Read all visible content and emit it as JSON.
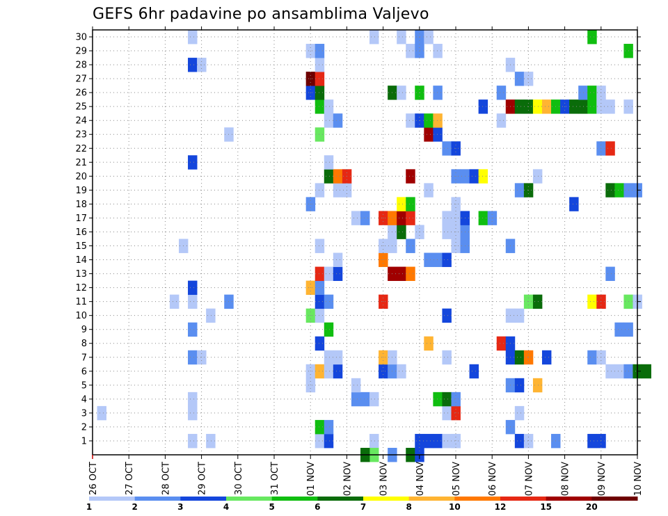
{
  "chart_data": {
    "type": "heatmap",
    "title": "GEFS 6hr padavine po ansamblima Valjevo",
    "x_tick_labels": [
      "26 OCT",
      "27 OCT",
      "28 OCT",
      "29 OCT",
      "30 OCT",
      "31 OCT",
      "01 NOV",
      "02 NOV",
      "03 NOV",
      "04 NOV",
      "05 NOV",
      "06 NOV",
      "07 NOV",
      "08 NOV",
      "09 NOV",
      "10 NOV"
    ],
    "y_tick_labels": [
      "1",
      "2",
      "3",
      "4",
      "5",
      "6",
      "7",
      "8",
      "9",
      "10",
      "11",
      "12",
      "13",
      "14",
      "15",
      "16",
      "17",
      "18",
      "19",
      "20",
      "21",
      "22",
      "23",
      "24",
      "25",
      "26",
      "27",
      "28",
      "29",
      "30"
    ],
    "x_range_days": [
      0,
      15
    ],
    "y_range": [
      0,
      30
    ],
    "x_unit": "days since 26 OCT 00Z",
    "step_hours": 6,
    "colorbar": {
      "labels": [
        "1",
        "2",
        "3",
        "4",
        "5",
        "6",
        "7",
        "8",
        "10",
        "12",
        "15",
        "20"
      ],
      "colors": [
        "#b4c8f8",
        "#5a8ef0",
        "#1446dc",
        "#68e860",
        "#10be10",
        "#0a6c0a",
        "#ffff00",
        "#ffb432",
        "#ff7800",
        "#e62814",
        "#a00000",
        "#6e0000"
      ]
    },
    "grid": true,
    "cells": [
      [
        6.25,
        1,
        0
      ],
      [
        6.5,
        1,
        2
      ],
      [
        7.75,
        1,
        0
      ],
      [
        7.75,
        0,
        3
      ],
      [
        8.75,
        0,
        5
      ],
      [
        9,
        0,
        2
      ],
      [
        9,
        1,
        2
      ],
      [
        9.25,
        1,
        2
      ],
      [
        9.5,
        1,
        2
      ],
      [
        9.75,
        1,
        0
      ],
      [
        10,
        1,
        0
      ],
      [
        10,
        1,
        0
      ],
      [
        11.75,
        1,
        2
      ],
      [
        12,
        1,
        0
      ],
      [
        12.75,
        1,
        1
      ],
      [
        13.75,
        1,
        2
      ],
      [
        14,
        1,
        2
      ],
      [
        2.75,
        1,
        0
      ],
      [
        3.25,
        1,
        0
      ],
      [
        7.5,
        0,
        5
      ],
      [
        8.25,
        0,
        1
      ],
      [
        6.25,
        2,
        4
      ],
      [
        6.5,
        2,
        1
      ],
      [
        11.5,
        2,
        1
      ],
      [
        0.25,
        3,
        0
      ],
      [
        2.75,
        3,
        0
      ],
      [
        9.75,
        3,
        0
      ],
      [
        10,
        3,
        9
      ],
      [
        11.75,
        3,
        0
      ],
      [
        2.75,
        4,
        0
      ],
      [
        7.25,
        4,
        1
      ],
      [
        7.5,
        4,
        1
      ],
      [
        7.75,
        4,
        0
      ],
      [
        9.5,
        4,
        4
      ],
      [
        9.75,
        4,
        5
      ],
      [
        10,
        4,
        1
      ],
      [
        6,
        5,
        0
      ],
      [
        7.25,
        5,
        0
      ],
      [
        11.5,
        5,
        1
      ],
      [
        11.75,
        5,
        2
      ],
      [
        12.25,
        5,
        7
      ],
      [
        6,
        6,
        0
      ],
      [
        6.25,
        6,
        7
      ],
      [
        6.5,
        6,
        0
      ],
      [
        6.75,
        6,
        2
      ],
      [
        8,
        6,
        2
      ],
      [
        8.25,
        6,
        1
      ],
      [
        8.5,
        6,
        0
      ],
      [
        10.5,
        6,
        2
      ],
      [
        14.25,
        6,
        0
      ],
      [
        14.5,
        6,
        0
      ],
      [
        14.75,
        6,
        1
      ],
      [
        15,
        6,
        5
      ],
      [
        15.25,
        6,
        5
      ],
      [
        2.75,
        7,
        1
      ],
      [
        3,
        7,
        0
      ],
      [
        6.5,
        7,
        0
      ],
      [
        6.75,
        7,
        0
      ],
      [
        8,
        7,
        7
      ],
      [
        8.25,
        7,
        0
      ],
      [
        9.75,
        7,
        0
      ],
      [
        11.5,
        7,
        2
      ],
      [
        11.75,
        7,
        5
      ],
      [
        12,
        7,
        8
      ],
      [
        12.5,
        7,
        2
      ],
      [
        13.75,
        7,
        1
      ],
      [
        14,
        7,
        0
      ],
      [
        6.25,
        8,
        2
      ],
      [
        9.25,
        8,
        7
      ],
      [
        11.25,
        8,
        9
      ],
      [
        11.5,
        8,
        2
      ],
      [
        2.75,
        9,
        1
      ],
      [
        6.5,
        9,
        4
      ],
      [
        14.5,
        9,
        1
      ],
      [
        14.75,
        9,
        1
      ],
      [
        3.25,
        10,
        0
      ],
      [
        6,
        10,
        3
      ],
      [
        6.25,
        10,
        0
      ],
      [
        9.75,
        10,
        2
      ],
      [
        11.5,
        10,
        0
      ],
      [
        11.75,
        10,
        0
      ],
      [
        2.25,
        11,
        0
      ],
      [
        2.75,
        11,
        0
      ],
      [
        3.75,
        11,
        1
      ],
      [
        6.25,
        11,
        2
      ],
      [
        6.5,
        11,
        1
      ],
      [
        8,
        11,
        9
      ],
      [
        12,
        11,
        3
      ],
      [
        12.25,
        11,
        5
      ],
      [
        13.75,
        11,
        6
      ],
      [
        14,
        11,
        9
      ],
      [
        14.75,
        11,
        3
      ],
      [
        15,
        11,
        0
      ],
      [
        2.75,
        12,
        2
      ],
      [
        6,
        12,
        7
      ],
      [
        6.25,
        12,
        1
      ],
      [
        6.25,
        13,
        9
      ],
      [
        6.5,
        13,
        0
      ],
      [
        6.75,
        13,
        2
      ],
      [
        8.25,
        13,
        10
      ],
      [
        8.5,
        13,
        10
      ],
      [
        8.75,
        13,
        8
      ],
      [
        14.25,
        13,
        1
      ],
      [
        6.75,
        14,
        0
      ],
      [
        8,
        14,
        8
      ],
      [
        9.25,
        14,
        1
      ],
      [
        9.5,
        14,
        1
      ],
      [
        9.75,
        14,
        2
      ],
      [
        2.5,
        15,
        0
      ],
      [
        6.25,
        15,
        0
      ],
      [
        8,
        15,
        0
      ],
      [
        8.25,
        15,
        0
      ],
      [
        8.75,
        15,
        1
      ],
      [
        10,
        15,
        0
      ],
      [
        10.25,
        15,
        1
      ],
      [
        11.5,
        15,
        1
      ],
      [
        8.25,
        16,
        0
      ],
      [
        8.5,
        16,
        5
      ],
      [
        9,
        16,
        0
      ],
      [
        9.75,
        16,
        0
      ],
      [
        10,
        16,
        0
      ],
      [
        10.25,
        16,
        1
      ],
      [
        7.25,
        17,
        0
      ],
      [
        7.5,
        17,
        1
      ],
      [
        8,
        17,
        9
      ],
      [
        8.25,
        17,
        8
      ],
      [
        8.5,
        17,
        10
      ],
      [
        8.75,
        17,
        9
      ],
      [
        9.75,
        17,
        0
      ],
      [
        10,
        17,
        0
      ],
      [
        10.25,
        17,
        2
      ],
      [
        10.75,
        17,
        4
      ],
      [
        11,
        17,
        1
      ],
      [
        6,
        18,
        1
      ],
      [
        8.5,
        18,
        6
      ],
      [
        8.75,
        18,
        4
      ],
      [
        10,
        18,
        0
      ],
      [
        13.25,
        18,
        2
      ],
      [
        6.25,
        19,
        0
      ],
      [
        6.75,
        19,
        0
      ],
      [
        7,
        19,
        0
      ],
      [
        9.25,
        19,
        0
      ],
      [
        11.75,
        19,
        1
      ],
      [
        12,
        19,
        5
      ],
      [
        14.25,
        19,
        5
      ],
      [
        14.5,
        19,
        4
      ],
      [
        14.75,
        19,
        1
      ],
      [
        15,
        19,
        1
      ],
      [
        6.5,
        20,
        5
      ],
      [
        6.75,
        20,
        8
      ],
      [
        7,
        20,
        9
      ],
      [
        8.75,
        20,
        10
      ],
      [
        10,
        20,
        1
      ],
      [
        10.25,
        20,
        1
      ],
      [
        10.5,
        20,
        2
      ],
      [
        10.75,
        20,
        6
      ],
      [
        12.25,
        20,
        0
      ],
      [
        2.75,
        21,
        2
      ],
      [
        6.5,
        21,
        0
      ],
      [
        9.75,
        22,
        1
      ],
      [
        10,
        22,
        2
      ],
      [
        14,
        22,
        1
      ],
      [
        14.25,
        22,
        9
      ],
      [
        3.75,
        23,
        0
      ],
      [
        6.25,
        23,
        3
      ],
      [
        9.25,
        23,
        10
      ],
      [
        9.5,
        23,
        2
      ],
      [
        6.5,
        24,
        0
      ],
      [
        6.75,
        24,
        1
      ],
      [
        8.75,
        24,
        0
      ],
      [
        9,
        24,
        2
      ],
      [
        9.25,
        24,
        4
      ],
      [
        9.5,
        24,
        7
      ],
      [
        11.25,
        24,
        0
      ],
      [
        6.25,
        25,
        4
      ],
      [
        6.5,
        25,
        0
      ],
      [
        10.75,
        25,
        2
      ],
      [
        11.5,
        25,
        10
      ],
      [
        11.75,
        25,
        5
      ],
      [
        12,
        25,
        5
      ],
      [
        12.25,
        25,
        6
      ],
      [
        12.5,
        25,
        7
      ],
      [
        12.75,
        25,
        4
      ],
      [
        13,
        25,
        2
      ],
      [
        13.25,
        25,
        5
      ],
      [
        13.5,
        25,
        5
      ],
      [
        13.75,
        25,
        4
      ],
      [
        14,
        25,
        0
      ],
      [
        14.25,
        25,
        0
      ],
      [
        14.75,
        25,
        0
      ],
      [
        6,
        26,
        2
      ],
      [
        6.25,
        26,
        5
      ],
      [
        8.25,
        26,
        5
      ],
      [
        8.5,
        26,
        0
      ],
      [
        9,
        26,
        4
      ],
      [
        9.5,
        26,
        1
      ],
      [
        11.25,
        26,
        1
      ],
      [
        13.5,
        26,
        1
      ],
      [
        13.75,
        26,
        4
      ],
      [
        14,
        26,
        0
      ],
      [
        6,
        27,
        11
      ],
      [
        6.25,
        27,
        9
      ],
      [
        11.75,
        27,
        1
      ],
      [
        12,
        27,
        0
      ],
      [
        2.75,
        28,
        2
      ],
      [
        3,
        28,
        0
      ],
      [
        6.25,
        28,
        0
      ],
      [
        11.5,
        28,
        0
      ],
      [
        6,
        29,
        0
      ],
      [
        6.25,
        29,
        1
      ],
      [
        8.75,
        29,
        0
      ],
      [
        9,
        29,
        1
      ],
      [
        9.5,
        29,
        0
      ],
      [
        14.75,
        29,
        4
      ],
      [
        2.75,
        30,
        0
      ],
      [
        7.75,
        30,
        0
      ],
      [
        8.5,
        30,
        0
      ],
      [
        9,
        30,
        1
      ],
      [
        9.25,
        30,
        0
      ],
      [
        13.75,
        30,
        4
      ]
    ]
  }
}
